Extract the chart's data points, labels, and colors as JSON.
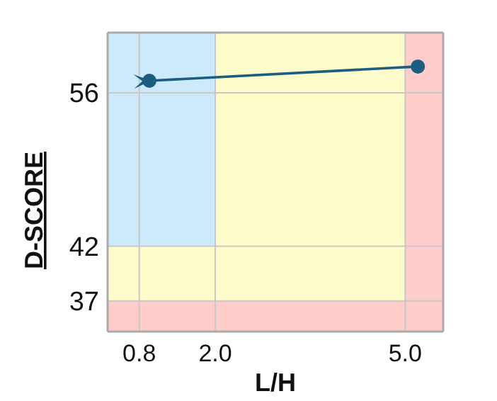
{
  "chart_data": {
    "type": "line",
    "xlabel": "L/H",
    "ylabel": "D-SCORE",
    "xlim": [
      0.3,
      5.6
    ],
    "xticks": [
      {
        "value": 0.8,
        "label": "0.8"
      },
      {
        "value": 2,
        "label": "2.0"
      },
      {
        "value": 5,
        "label": "5.0"
      }
    ],
    "ylim": [
      34.2,
      61.5
    ],
    "yticks": [
      37,
      42,
      56
    ],
    "grid": true,
    "marker": "circle",
    "line_style": "solid",
    "series": [
      {
        "color": "#1b5e80",
        "x": [
          5.2,
          0.96
        ],
        "values": [
          58.4,
          57.1
        ]
      }
    ],
    "bands": [
      {
        "axis": "x",
        "from": 0.3,
        "to": 2,
        "color": "#cceafb"
      },
      {
        "axis": "x",
        "from": 2,
        "to": 5,
        "color": "#fffccc"
      },
      {
        "axis": "y",
        "from": 37,
        "to": 42,
        "color": "#fffccc"
      },
      {
        "axis": "x",
        "from": 5,
        "to": 5.6,
        "color": "#ffcccc"
      },
      {
        "axis": "y",
        "from": 34.2,
        "to": 37,
        "color": "#ffcccc"
      }
    ]
  }
}
